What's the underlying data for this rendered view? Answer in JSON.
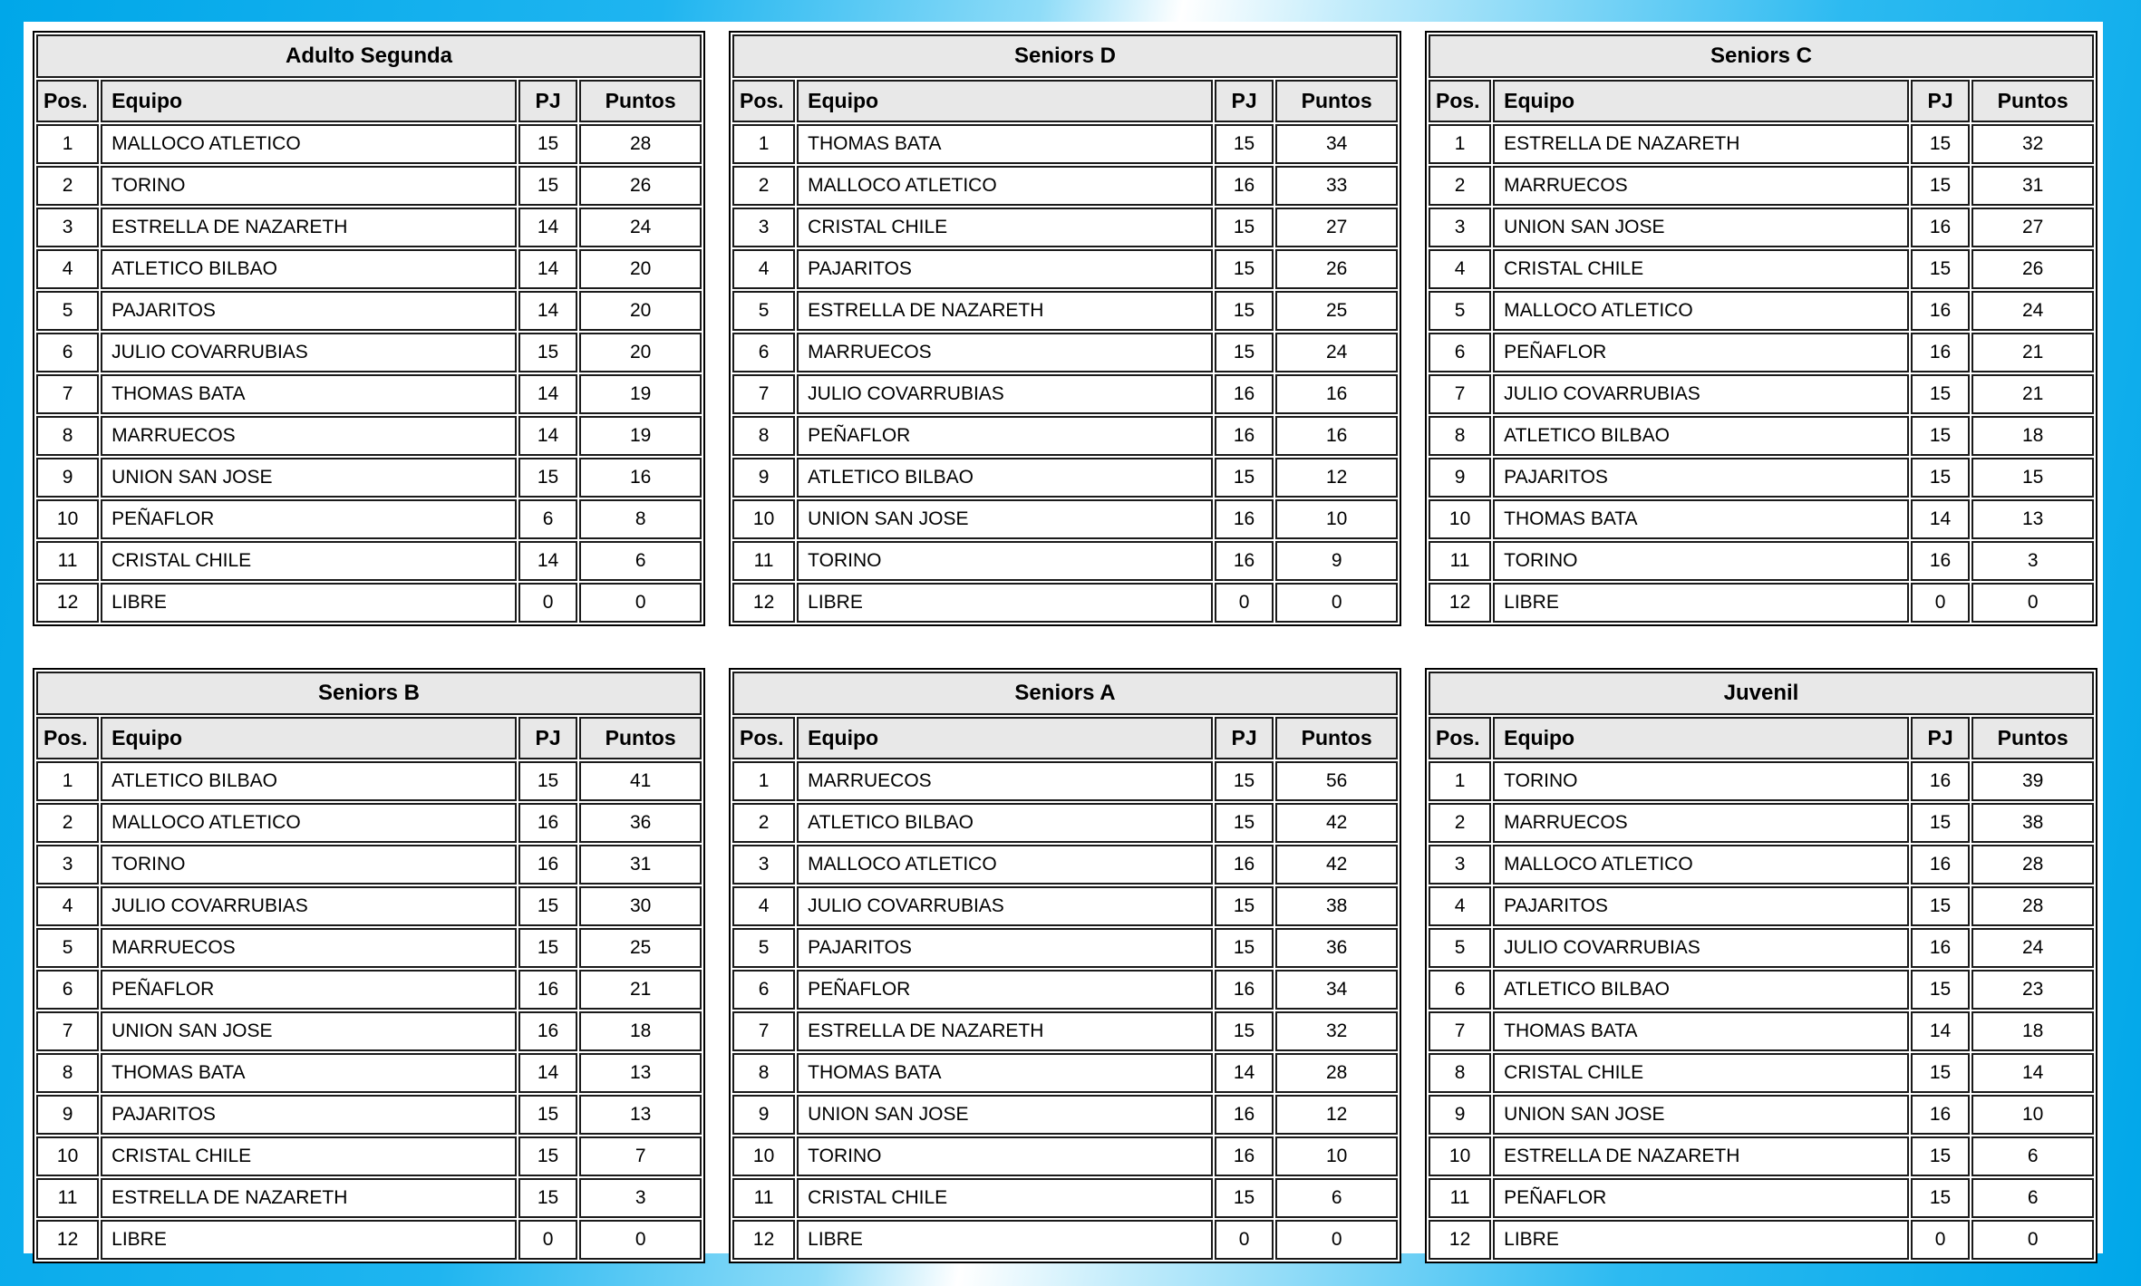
{
  "board": {
    "description": "League standings board with six division tables",
    "frame_color": "#00A7E9",
    "frame_highlight": "#FFFFFF",
    "header_bg": "#E8E8E8",
    "border_color": "#000000",
    "text_color": "#000000"
  },
  "columns": [
    "Pos.",
    "Equipo",
    "PJ",
    "Puntos"
  ],
  "tables": [
    {
      "title": "Adulto Segunda",
      "rows": [
        [
          "1",
          "MALLOCO ATLETICO",
          "15",
          "28"
        ],
        [
          "2",
          "TORINO",
          "15",
          "26"
        ],
        [
          "3",
          "ESTRELLA DE NAZARETH",
          "14",
          "24"
        ],
        [
          "4",
          "ATLETICO BILBAO",
          "14",
          "20"
        ],
        [
          "5",
          "PAJARITOS",
          "14",
          "20"
        ],
        [
          "6",
          "JULIO COVARRUBIAS",
          "15",
          "20"
        ],
        [
          "7",
          "THOMAS BATA",
          "14",
          "19"
        ],
        [
          "8",
          "MARRUECOS",
          "14",
          "19"
        ],
        [
          "9",
          "UNION SAN JOSE",
          "15",
          "16"
        ],
        [
          "10",
          "PEÑAFLOR",
          "6",
          "8"
        ],
        [
          "11",
          "CRISTAL CHILE",
          "14",
          "6"
        ],
        [
          "12",
          "LIBRE",
          "0",
          "0"
        ]
      ]
    },
    {
      "title": "Seniors D",
      "rows": [
        [
          "1",
          "THOMAS BATA",
          "15",
          "34"
        ],
        [
          "2",
          "MALLOCO ATLETICO",
          "16",
          "33"
        ],
        [
          "3",
          "CRISTAL CHILE",
          "15",
          "27"
        ],
        [
          "4",
          "PAJARITOS",
          "15",
          "26"
        ],
        [
          "5",
          "ESTRELLA DE NAZARETH",
          "15",
          "25"
        ],
        [
          "6",
          "MARRUECOS",
          "15",
          "24"
        ],
        [
          "7",
          "JULIO COVARRUBIAS",
          "16",
          "16"
        ],
        [
          "8",
          "PEÑAFLOR",
          "16",
          "16"
        ],
        [
          "9",
          "ATLETICO BILBAO",
          "15",
          "12"
        ],
        [
          "10",
          "UNION SAN JOSE",
          "16",
          "10"
        ],
        [
          "11",
          "TORINO",
          "16",
          "9"
        ],
        [
          "12",
          "LIBRE",
          "0",
          "0"
        ]
      ]
    },
    {
      "title": "Seniors C",
      "rows": [
        [
          "1",
          "ESTRELLA DE NAZARETH",
          "15",
          "32"
        ],
        [
          "2",
          "MARRUECOS",
          "15",
          "31"
        ],
        [
          "3",
          "UNION SAN JOSE",
          "16",
          "27"
        ],
        [
          "4",
          "CRISTAL CHILE",
          "15",
          "26"
        ],
        [
          "5",
          "MALLOCO ATLETICO",
          "16",
          "24"
        ],
        [
          "6",
          "PEÑAFLOR",
          "16",
          "21"
        ],
        [
          "7",
          "JULIO COVARRUBIAS",
          "15",
          "21"
        ],
        [
          "8",
          "ATLETICO BILBAO",
          "15",
          "18"
        ],
        [
          "9",
          "PAJARITOS",
          "15",
          "15"
        ],
        [
          "10",
          "THOMAS BATA",
          "14",
          "13"
        ],
        [
          "11",
          "TORINO",
          "16",
          "3"
        ],
        [
          "12",
          "LIBRE",
          "0",
          "0"
        ]
      ]
    },
    {
      "title": "Seniors B",
      "rows": [
        [
          "1",
          "ATLETICO BILBAO",
          "15",
          "41"
        ],
        [
          "2",
          "MALLOCO ATLETICO",
          "16",
          "36"
        ],
        [
          "3",
          "TORINO",
          "16",
          "31"
        ],
        [
          "4",
          "JULIO COVARRUBIAS",
          "15",
          "30"
        ],
        [
          "5",
          "MARRUECOS",
          "15",
          "25"
        ],
        [
          "6",
          "PEÑAFLOR",
          "16",
          "21"
        ],
        [
          "7",
          "UNION SAN JOSE",
          "16",
          "18"
        ],
        [
          "8",
          "THOMAS BATA",
          "14",
          "13"
        ],
        [
          "9",
          "PAJARITOS",
          "15",
          "13"
        ],
        [
          "10",
          "CRISTAL CHILE",
          "15",
          "7"
        ],
        [
          "11",
          "ESTRELLA DE NAZARETH",
          "15",
          "3"
        ],
        [
          "12",
          "LIBRE",
          "0",
          "0"
        ]
      ]
    },
    {
      "title": "Seniors A",
      "rows": [
        [
          "1",
          "MARRUECOS",
          "15",
          "56"
        ],
        [
          "2",
          "ATLETICO BILBAO",
          "15",
          "42"
        ],
        [
          "3",
          "MALLOCO ATLETICO",
          "16",
          "42"
        ],
        [
          "4",
          "JULIO COVARRUBIAS",
          "15",
          "38"
        ],
        [
          "5",
          "PAJARITOS",
          "15",
          "36"
        ],
        [
          "6",
          "PEÑAFLOR",
          "16",
          "34"
        ],
        [
          "7",
          "ESTRELLA DE NAZARETH",
          "15",
          "32"
        ],
        [
          "8",
          "THOMAS BATA",
          "14",
          "28"
        ],
        [
          "9",
          "UNION SAN JOSE",
          "16",
          "12"
        ],
        [
          "10",
          "TORINO",
          "16",
          "10"
        ],
        [
          "11",
          "CRISTAL CHILE",
          "15",
          "6"
        ],
        [
          "12",
          "LIBRE",
          "0",
          "0"
        ]
      ]
    },
    {
      "title": "Juvenil",
      "rows": [
        [
          "1",
          "TORINO",
          "16",
          "39"
        ],
        [
          "2",
          "MARRUECOS",
          "15",
          "38"
        ],
        [
          "3",
          "MALLOCO ATLETICO",
          "16",
          "28"
        ],
        [
          "4",
          "PAJARITOS",
          "15",
          "28"
        ],
        [
          "5",
          "JULIO COVARRUBIAS",
          "16",
          "24"
        ],
        [
          "6",
          "ATLETICO BILBAO",
          "15",
          "23"
        ],
        [
          "7",
          "THOMAS BATA",
          "14",
          "18"
        ],
        [
          "8",
          "CRISTAL CHILE",
          "15",
          "14"
        ],
        [
          "9",
          "UNION SAN JOSE",
          "16",
          "10"
        ],
        [
          "10",
          "ESTRELLA DE NAZARETH",
          "15",
          "6"
        ],
        [
          "11",
          "PEÑAFLOR",
          "15",
          "6"
        ],
        [
          "12",
          "LIBRE",
          "0",
          "0"
        ]
      ]
    }
  ]
}
